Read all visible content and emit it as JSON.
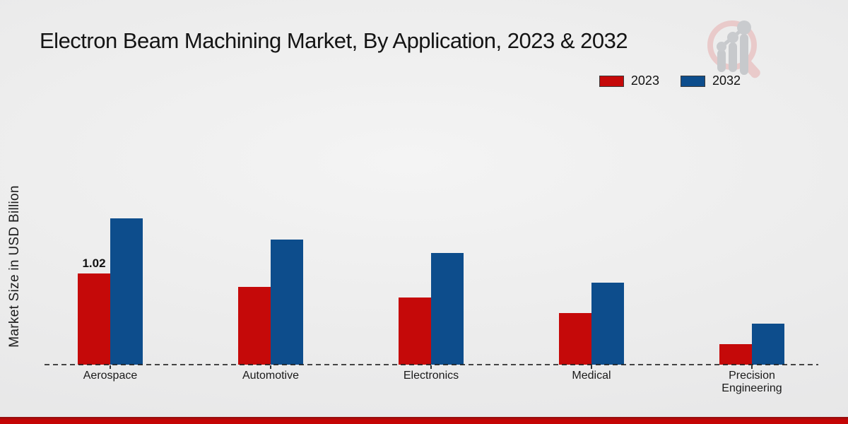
{
  "title": "Electron Beam Machining Market, By Application, 2023 & 2032",
  "y_axis_label": "Market Size in USD Billion",
  "legend": {
    "position": "top-right",
    "items": [
      {
        "label": "2023",
        "color": "#c50909"
      },
      {
        "label": "2032",
        "color": "#0d4d8c"
      }
    ]
  },
  "branding": {
    "logo_icon": "magnifier-bar-chart-logo"
  },
  "colors": {
    "series_2023": "#c50909",
    "series_2032": "#0d4d8c",
    "footer_band": "#c50505",
    "baseline_dash": "#1a1a1a",
    "background": "#ececec"
  },
  "chart_data": {
    "type": "bar",
    "title": "Electron Beam Machining Market, By Application, 2023 & 2032",
    "xlabel": "",
    "ylabel": "Market Size in USD Billion",
    "categories": [
      "Aerospace",
      "Automotive",
      "Electronics",
      "Medical",
      "Precision Engineering"
    ],
    "series": [
      {
        "name": "2023",
        "color": "#c50909",
        "values": [
          1.02,
          0.87,
          0.75,
          0.58,
          0.23
        ]
      },
      {
        "name": "2032",
        "color": "#0d4d8c",
        "values": [
          1.64,
          1.4,
          1.25,
          0.92,
          0.46
        ]
      }
    ],
    "annotations": [
      {
        "category": "Aerospace",
        "series": "2023",
        "text": "1.02"
      }
    ],
    "ylim": [
      0,
      2
    ],
    "grid": false,
    "legend_position": "top-right",
    "baseline_style": "dashed"
  }
}
